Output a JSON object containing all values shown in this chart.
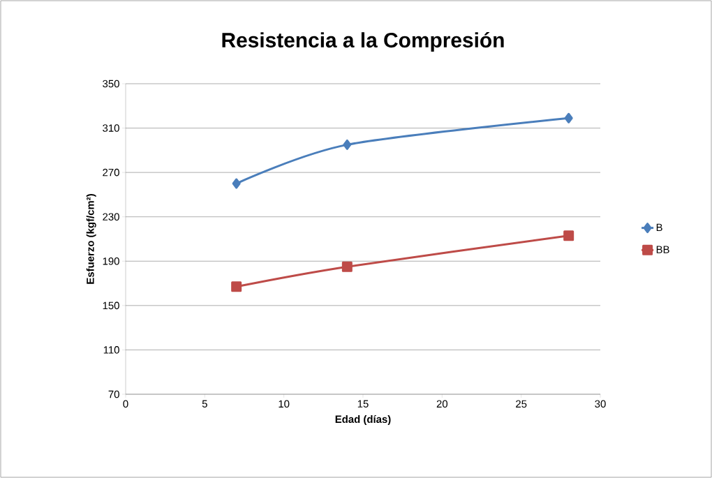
{
  "chart_data": {
    "type": "line",
    "title": "Resistencia a la Compresión",
    "xlabel": "Edad (días)",
    "ylabel": "Esfuerzo (kgf/cm²)",
    "x": [
      7,
      14,
      28
    ],
    "series": [
      {
        "name": "B",
        "color": "#4a7ebb",
        "marker": "diamond",
        "values": [
          260,
          295,
          319
        ]
      },
      {
        "name": "BB",
        "color": "#be4b48",
        "marker": "square",
        "values": [
          167,
          185,
          213
        ]
      }
    ],
    "xlim": [
      0,
      30
    ],
    "xticks": [
      0,
      5,
      10,
      15,
      20,
      25,
      30
    ],
    "ylim": [
      70,
      350
    ],
    "yticks": [
      70,
      110,
      150,
      190,
      230,
      270,
      310,
      350
    ],
    "grid": "y",
    "legend": "right"
  }
}
